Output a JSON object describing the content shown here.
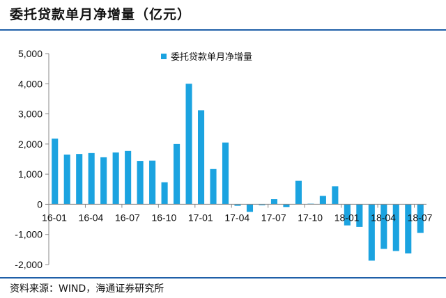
{
  "header": {
    "title": "委托贷款单月净增量（亿元）"
  },
  "footer": {
    "source": "资料来源：WIND，海通证券研究所"
  },
  "colors": {
    "bar": "#1ba3e0",
    "rule": "#1f5fa8",
    "axis": "#888888"
  },
  "chart_data": {
    "type": "bar",
    "title": "委托贷款单月净增量（亿元）",
    "legend": {
      "position": "top-center",
      "entries": [
        "委托贷款单月净增量"
      ]
    },
    "ylim": [
      -2000,
      5000
    ],
    "yticks": [
      "5,000",
      "4,000",
      "3,000",
      "2,000",
      "1,000",
      "0",
      "-1,000",
      "-2,000"
    ],
    "ytick_values": [
      5000,
      4000,
      3000,
      2000,
      1000,
      0,
      -1000,
      -2000
    ],
    "xtick_labels": [
      "16-01",
      "16-04",
      "16-07",
      "16-10",
      "17-01",
      "17-04",
      "17-07",
      "17-10",
      "18-01",
      "18-04",
      "18-07"
    ],
    "grid": false,
    "categories": [
      "16-01",
      "16-02",
      "16-03",
      "16-04",
      "16-05",
      "16-06",
      "16-07",
      "16-08",
      "16-09",
      "16-10",
      "16-11",
      "16-12",
      "17-01",
      "17-02",
      "17-03",
      "17-04",
      "17-05",
      "17-06",
      "17-07",
      "17-08",
      "17-09",
      "17-10",
      "17-11",
      "17-12",
      "18-01",
      "18-02",
      "18-03",
      "18-04",
      "18-05",
      "18-06",
      "18-07"
    ],
    "series": [
      {
        "name": "委托贷款单月净增量",
        "values": [
          2180,
          1650,
          1670,
          1700,
          1560,
          1720,
          1770,
          1440,
          1450,
          730,
          2000,
          4000,
          3120,
          1170,
          2050,
          -50,
          -250,
          -30,
          170,
          -90,
          780,
          20,
          280,
          600,
          -700,
          -750,
          -1870,
          -1480,
          -1550,
          -1630,
          -950
        ]
      }
    ]
  }
}
